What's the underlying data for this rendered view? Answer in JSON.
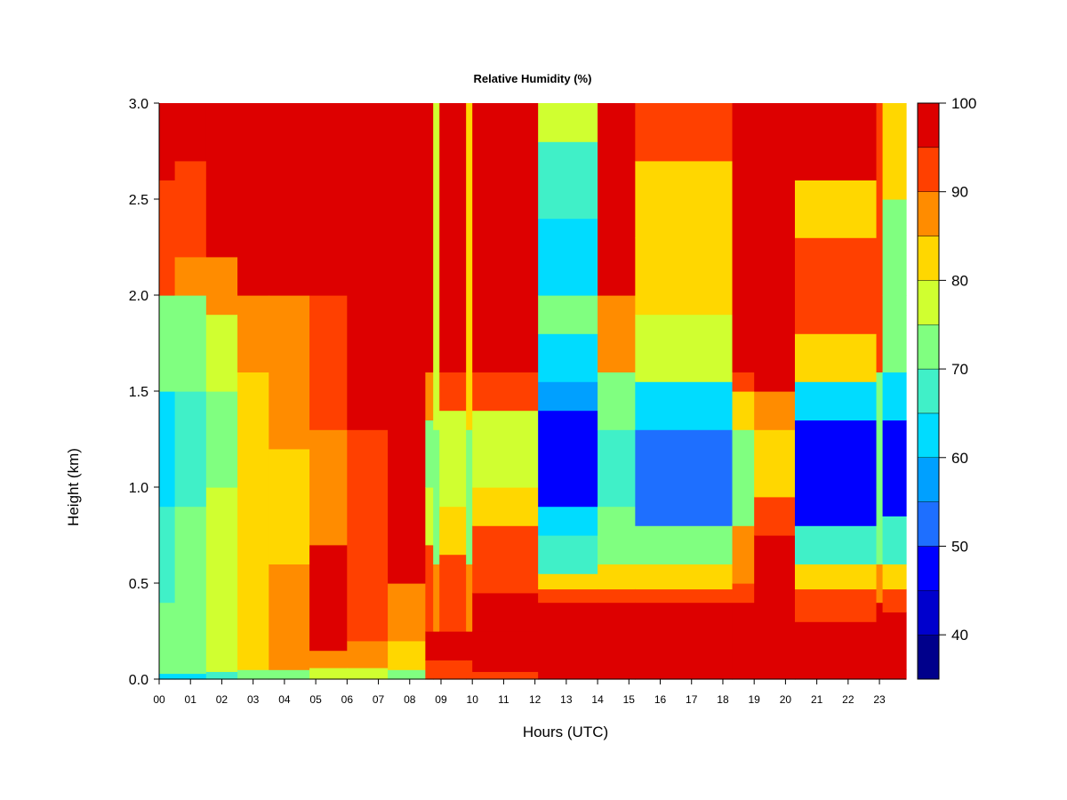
{
  "chart_data": {
    "type": "heatmap",
    "title": "Relative Humidity (%)",
    "xlabel": "Hours (UTC)",
    "ylabel": "Height (km)",
    "x_ticks": [
      "00",
      "01",
      "02",
      "03",
      "04",
      "05",
      "06",
      "07",
      "08",
      "09",
      "10",
      "11",
      "12",
      "13",
      "14",
      "15",
      "16",
      "17",
      "18",
      "19",
      "20",
      "21",
      "22",
      "23"
    ],
    "x_tick_values": [
      0,
      1,
      2,
      3,
      4,
      5,
      6,
      7,
      8,
      9,
      10,
      11,
      12,
      13,
      14,
      15,
      16,
      17,
      18,
      19,
      20,
      21,
      22,
      23
    ],
    "xlim": [
      0,
      23.85
    ],
    "y_ticks": [
      "0.0",
      "0.5",
      "1.0",
      "1.5",
      "2.0",
      "2.5",
      "3.0"
    ],
    "y_tick_values": [
      0.0,
      0.5,
      1.0,
      1.5,
      2.0,
      2.5,
      3.0
    ],
    "ylim": [
      0.0,
      3.0
    ],
    "colorbar": {
      "levels": [
        35,
        40,
        45,
        50,
        55,
        60,
        65,
        70,
        75,
        80,
        85,
        90,
        95,
        100
      ],
      "colors": [
        "#00008B",
        "#0000CD",
        "#0000FF",
        "#1E6FFF",
        "#00A0FF",
        "#00DCFF",
        "#40F0C8",
        "#80FF80",
        "#D0FF30",
        "#FFD700",
        "#FF8C00",
        "#FF4000",
        "#DD0000",
        "#800000"
      ],
      "tick_labels": [
        "40",
        "50",
        "60",
        "70",
        "80",
        "90",
        "100"
      ],
      "tick_values": [
        40,
        50,
        60,
        70,
        80,
        90,
        100
      ]
    },
    "columns": [
      {
        "x0": 0.0,
        "x1": 0.5,
        "profile": [
          [
            0,
            0.03,
            64
          ],
          [
            0.03,
            0.4,
            70
          ],
          [
            0.4,
            0.9,
            66
          ],
          [
            0.9,
            1.5,
            62
          ],
          [
            1.5,
            2.0,
            72
          ],
          [
            2.0,
            2.6,
            91
          ],
          [
            2.6,
            3.0,
            99
          ]
        ]
      },
      {
        "x0": 0.5,
        "x1": 1.5,
        "profile": [
          [
            0,
            0.03,
            64
          ],
          [
            0.03,
            0.3,
            74
          ],
          [
            0.3,
            0.9,
            72
          ],
          [
            0.9,
            1.5,
            67
          ],
          [
            1.5,
            2.0,
            74
          ],
          [
            2.0,
            2.2,
            88
          ],
          [
            2.2,
            2.7,
            93
          ],
          [
            2.7,
            3.0,
            99
          ]
        ]
      },
      {
        "x0": 1.5,
        "x1": 2.5,
        "profile": [
          [
            0,
            0.04,
            68
          ],
          [
            0.04,
            0.3,
            77
          ],
          [
            0.3,
            1.0,
            75
          ],
          [
            1.0,
            1.5,
            73
          ],
          [
            1.5,
            1.9,
            78
          ],
          [
            1.9,
            2.2,
            89
          ],
          [
            2.2,
            2.6,
            95
          ],
          [
            2.6,
            3.0,
            99
          ]
        ]
      },
      {
        "x0": 2.5,
        "x1": 3.5,
        "profile": [
          [
            0,
            0.05,
            72
          ],
          [
            0.05,
            0.6,
            84
          ],
          [
            0.6,
            1.1,
            80
          ],
          [
            1.1,
            1.6,
            82
          ],
          [
            1.6,
            2.0,
            87
          ],
          [
            2.0,
            3.0,
            99
          ]
        ]
      },
      {
        "x0": 3.5,
        "x1": 4.8,
        "profile": [
          [
            0,
            0.05,
            74
          ],
          [
            0.05,
            0.6,
            88
          ],
          [
            0.6,
            1.2,
            84
          ],
          [
            1.2,
            1.6,
            86
          ],
          [
            1.6,
            2.0,
            89
          ],
          [
            2.0,
            3.0,
            99
          ]
        ]
      },
      {
        "x0": 4.8,
        "x1": 6.0,
        "profile": [
          [
            0,
            0.06,
            76
          ],
          [
            0.06,
            0.15,
            86
          ],
          [
            0.15,
            0.7,
            98
          ],
          [
            0.7,
            1.3,
            88
          ],
          [
            1.3,
            2.0,
            90
          ],
          [
            2.0,
            3.0,
            99
          ]
        ]
      },
      {
        "x0": 6.0,
        "x1": 7.3,
        "profile": [
          [
            0,
            0.06,
            76
          ],
          [
            0.06,
            0.2,
            86
          ],
          [
            0.2,
            0.7,
            94
          ],
          [
            0.7,
            1.3,
            90
          ],
          [
            1.3,
            3.0,
            99
          ]
        ]
      },
      {
        "x0": 7.3,
        "x1": 8.5,
        "profile": [
          [
            0,
            0.05,
            72
          ],
          [
            0.05,
            0.2,
            80
          ],
          [
            0.2,
            0.5,
            88
          ],
          [
            0.5,
            1.2,
            97
          ],
          [
            1.2,
            3.0,
            99
          ]
        ]
      },
      {
        "x0": 8.5,
        "x1": 8.75,
        "profile": [
          [
            0,
            0.1,
            92
          ],
          [
            0.1,
            0.25,
            98
          ],
          [
            0.25,
            0.7,
            90
          ],
          [
            0.7,
            1.0,
            78
          ],
          [
            1.0,
            1.35,
            72
          ],
          [
            1.35,
            1.6,
            88
          ],
          [
            1.6,
            3.0,
            99
          ]
        ]
      },
      {
        "x0": 8.75,
        "x1": 8.95,
        "profile": [
          [
            0,
            0.1,
            92
          ],
          [
            0.1,
            0.25,
            98
          ],
          [
            0.25,
            0.6,
            88
          ],
          [
            0.6,
            1.3,
            74
          ],
          [
            1.3,
            3.0,
            76
          ]
        ]
      },
      {
        "x0": 8.95,
        "x1": 9.8,
        "profile": [
          [
            0,
            0.1,
            92
          ],
          [
            0.1,
            0.25,
            98
          ],
          [
            0.25,
            0.65,
            90
          ],
          [
            0.65,
            0.9,
            82
          ],
          [
            0.9,
            1.4,
            77
          ],
          [
            1.4,
            1.6,
            90
          ],
          [
            1.6,
            3.0,
            99
          ]
        ]
      },
      {
        "x0": 9.8,
        "x1": 10.0,
        "profile": [
          [
            0,
            0.1,
            92
          ],
          [
            0.1,
            0.25,
            98
          ],
          [
            0.25,
            0.6,
            88
          ],
          [
            0.6,
            1.3,
            74
          ],
          [
            1.3,
            3.0,
            80
          ]
        ]
      },
      {
        "x0": 10.0,
        "x1": 12.1,
        "profile": [
          [
            0,
            0.04,
            94
          ],
          [
            0.04,
            0.25,
            99
          ],
          [
            0.25,
            0.45,
            96
          ],
          [
            0.45,
            0.8,
            90
          ],
          [
            0.8,
            1.0,
            84
          ],
          [
            1.0,
            1.4,
            79
          ],
          [
            1.4,
            1.6,
            90
          ],
          [
            1.6,
            3.0,
            99
          ]
        ]
      },
      {
        "x0": 12.1,
        "x1": 14.0,
        "profile": [
          [
            0,
            0.05,
            96
          ],
          [
            0.05,
            0.4,
            99
          ],
          [
            0.4,
            0.47,
            94
          ],
          [
            0.47,
            0.55,
            84
          ],
          [
            0.55,
            0.75,
            66
          ],
          [
            0.75,
            0.9,
            60
          ],
          [
            0.9,
            1.4,
            47
          ],
          [
            1.4,
            1.55,
            58
          ],
          [
            1.55,
            1.8,
            64
          ],
          [
            1.8,
            2.0,
            70
          ],
          [
            2.0,
            2.4,
            64
          ],
          [
            2.4,
            2.8,
            68
          ],
          [
            2.8,
            3.0,
            76
          ]
        ]
      },
      {
        "x0": 14.0,
        "x1": 15.2,
        "profile": [
          [
            0,
            0.05,
            96
          ],
          [
            0.05,
            0.4,
            99
          ],
          [
            0.4,
            0.47,
            94
          ],
          [
            0.47,
            0.6,
            84
          ],
          [
            0.6,
            0.9,
            74
          ],
          [
            0.9,
            1.3,
            66
          ],
          [
            1.3,
            1.6,
            74
          ],
          [
            1.6,
            2.0,
            88
          ],
          [
            2.0,
            2.6,
            95
          ],
          [
            2.6,
            3.0,
            99
          ]
        ]
      },
      {
        "x0": 15.2,
        "x1": 18.3,
        "profile": [
          [
            0,
            0.05,
            96
          ],
          [
            0.05,
            0.4,
            99
          ],
          [
            0.4,
            0.47,
            94
          ],
          [
            0.47,
            0.6,
            84
          ],
          [
            0.6,
            0.8,
            70
          ],
          [
            0.8,
            1.3,
            52
          ],
          [
            1.3,
            1.55,
            62
          ],
          [
            1.55,
            1.9,
            76
          ],
          [
            1.9,
            2.3,
            80
          ],
          [
            2.3,
            2.7,
            84
          ],
          [
            2.7,
            3.0,
            90
          ]
        ]
      },
      {
        "x0": 18.3,
        "x1": 19.0,
        "profile": [
          [
            0,
            0.05,
            96
          ],
          [
            0.05,
            0.4,
            99
          ],
          [
            0.4,
            0.5,
            94
          ],
          [
            0.5,
            0.8,
            88
          ],
          [
            0.8,
            1.3,
            74
          ],
          [
            1.3,
            1.5,
            80
          ],
          [
            1.5,
            1.6,
            90
          ],
          [
            1.6,
            3.0,
            99
          ]
        ]
      },
      {
        "x0": 19.0,
        "x1": 20.3,
        "profile": [
          [
            0,
            0.05,
            96
          ],
          [
            0.05,
            0.75,
            99
          ],
          [
            0.75,
            0.95,
            90
          ],
          [
            0.95,
            1.3,
            80
          ],
          [
            1.3,
            1.5,
            86
          ],
          [
            1.5,
            3.0,
            99
          ]
        ]
      },
      {
        "x0": 20.3,
        "x1": 22.9,
        "profile": [
          [
            0,
            0.05,
            96
          ],
          [
            0.05,
            0.3,
            99
          ],
          [
            0.3,
            0.4,
            94
          ],
          [
            0.4,
            0.47,
            90
          ],
          [
            0.47,
            0.6,
            80
          ],
          [
            0.6,
            0.8,
            68
          ],
          [
            0.8,
            1.35,
            46
          ],
          [
            1.35,
            1.55,
            60
          ],
          [
            1.55,
            1.8,
            80
          ],
          [
            1.8,
            2.3,
            92
          ],
          [
            2.3,
            2.6,
            84
          ],
          [
            2.6,
            3.0,
            96
          ]
        ]
      },
      {
        "x0": 22.9,
        "x1": 23.1,
        "profile": [
          [
            0,
            0.05,
            96
          ],
          [
            0.05,
            0.4,
            99
          ],
          [
            0.4,
            0.6,
            88
          ],
          [
            0.6,
            1.0,
            74
          ],
          [
            1.0,
            1.6,
            72
          ],
          [
            1.6,
            3.0,
            94
          ]
        ]
      },
      {
        "x0": 23.1,
        "x1": 23.85,
        "profile": [
          [
            0,
            0.05,
            96
          ],
          [
            0.05,
            0.35,
            99
          ],
          [
            0.35,
            0.47,
            92
          ],
          [
            0.47,
            0.6,
            80
          ],
          [
            0.6,
            0.85,
            66
          ],
          [
            0.85,
            1.35,
            49
          ],
          [
            1.35,
            1.6,
            62
          ],
          [
            1.6,
            2.0,
            74
          ],
          [
            2.0,
            2.5,
            70
          ],
          [
            2.5,
            3.0,
            80
          ]
        ]
      }
    ]
  }
}
